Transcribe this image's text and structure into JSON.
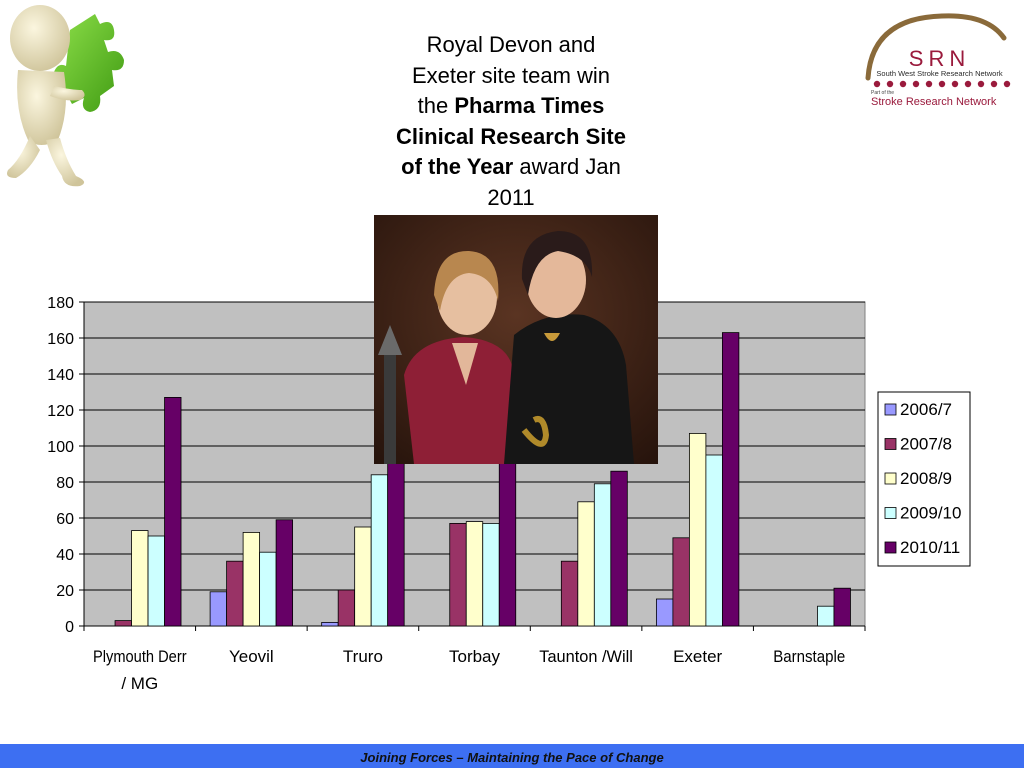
{
  "title": {
    "line1": "Royal Devon and",
    "line2": "Exeter site team win",
    "line3_pre": "the ",
    "line3_bold": "Pharma Times",
    "line4_bold": "Clinical Research Site",
    "line5_bold": "of the Year",
    "line5_post": " award Jan",
    "line6": "2011"
  },
  "logo": {
    "acronym": "SRN",
    "network_name": "South West Stroke Research Network",
    "part_of": "Part of the",
    "parent_network": "Stroke Research Network",
    "brand_color": "#9a1a3c",
    "arc_color": "#8a6a3a"
  },
  "footer": {
    "tagline": "Joining Forces – Maintaining the Pace of Change",
    "background": "#3d6ff2"
  },
  "images": {
    "left_figure": "puzzle-piece-figure-icon",
    "photo": "award-winners-photo"
  },
  "chart_data": {
    "type": "bar",
    "categories": [
      "Plymouth Derr / MG",
      "Yeovil",
      "Truro",
      "Torbay",
      "Taunton /Will",
      "Exeter",
      "Barnstaple"
    ],
    "category_lines": [
      [
        "Plymouth Derr",
        "/ MG"
      ],
      [
        "Yeovil"
      ],
      [
        "Truro"
      ],
      [
        "Torbay"
      ],
      [
        "Taunton /Will"
      ],
      [
        "Exeter"
      ],
      [
        "Barnstaple"
      ]
    ],
    "series": [
      {
        "name": "2006/7",
        "color": "#9999ff",
        "values": [
          0,
          19,
          2,
          0,
          0,
          15,
          0
        ]
      },
      {
        "name": "2007/8",
        "color": "#993366",
        "values": [
          3,
          36,
          20,
          57,
          36,
          49,
          0
        ]
      },
      {
        "name": "2008/9",
        "color": "#ffffcc",
        "values": [
          53,
          52,
          55,
          58,
          69,
          107,
          0
        ]
      },
      {
        "name": "2009/10",
        "color": "#ccffff",
        "values": [
          50,
          41,
          84,
          57,
          79,
          95,
          11
        ]
      },
      {
        "name": "2010/11",
        "color": "#660066",
        "values": [
          127,
          59,
          92,
          92,
          86,
          163,
          21
        ]
      }
    ],
    "yticks": [
      0,
      20,
      40,
      60,
      80,
      100,
      120,
      140,
      160,
      180
    ],
    "ylim": [
      0,
      180
    ],
    "grid": true,
    "plot_background": "#c0c0c0",
    "legend_position": "right"
  }
}
